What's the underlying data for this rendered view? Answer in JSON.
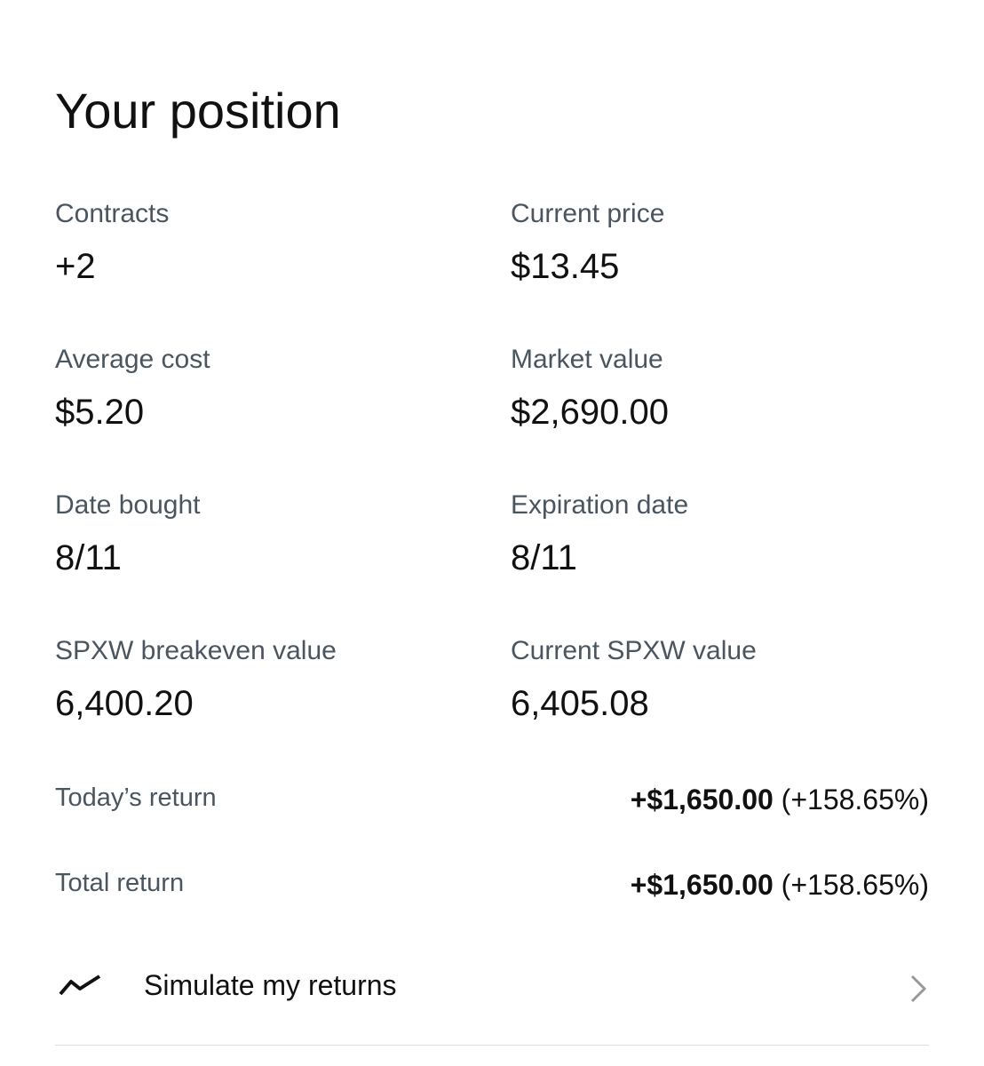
{
  "header": {
    "title": "Your position"
  },
  "fields": [
    {
      "label": "Contracts",
      "value": "+2"
    },
    {
      "label": "Current price",
      "value": "$13.45"
    },
    {
      "label": "Average cost",
      "value": "$5.20"
    },
    {
      "label": "Market value",
      "value": "$2,690.00"
    },
    {
      "label": "Date bought",
      "value": "8/11"
    },
    {
      "label": "Expiration date",
      "value": "8/11"
    },
    {
      "label": "SPXW breakeven value",
      "value": "6,400.20"
    },
    {
      "label": "Current SPXW value",
      "value": "6,405.08"
    }
  ],
  "returns": [
    {
      "label": "Today’s return",
      "amount": "+$1,650.00",
      "percent": "(+158.65%)"
    },
    {
      "label": "Total return",
      "amount": "+$1,650.00",
      "percent": "(+158.65%)"
    }
  ],
  "action": {
    "label": "Simulate my returns"
  }
}
